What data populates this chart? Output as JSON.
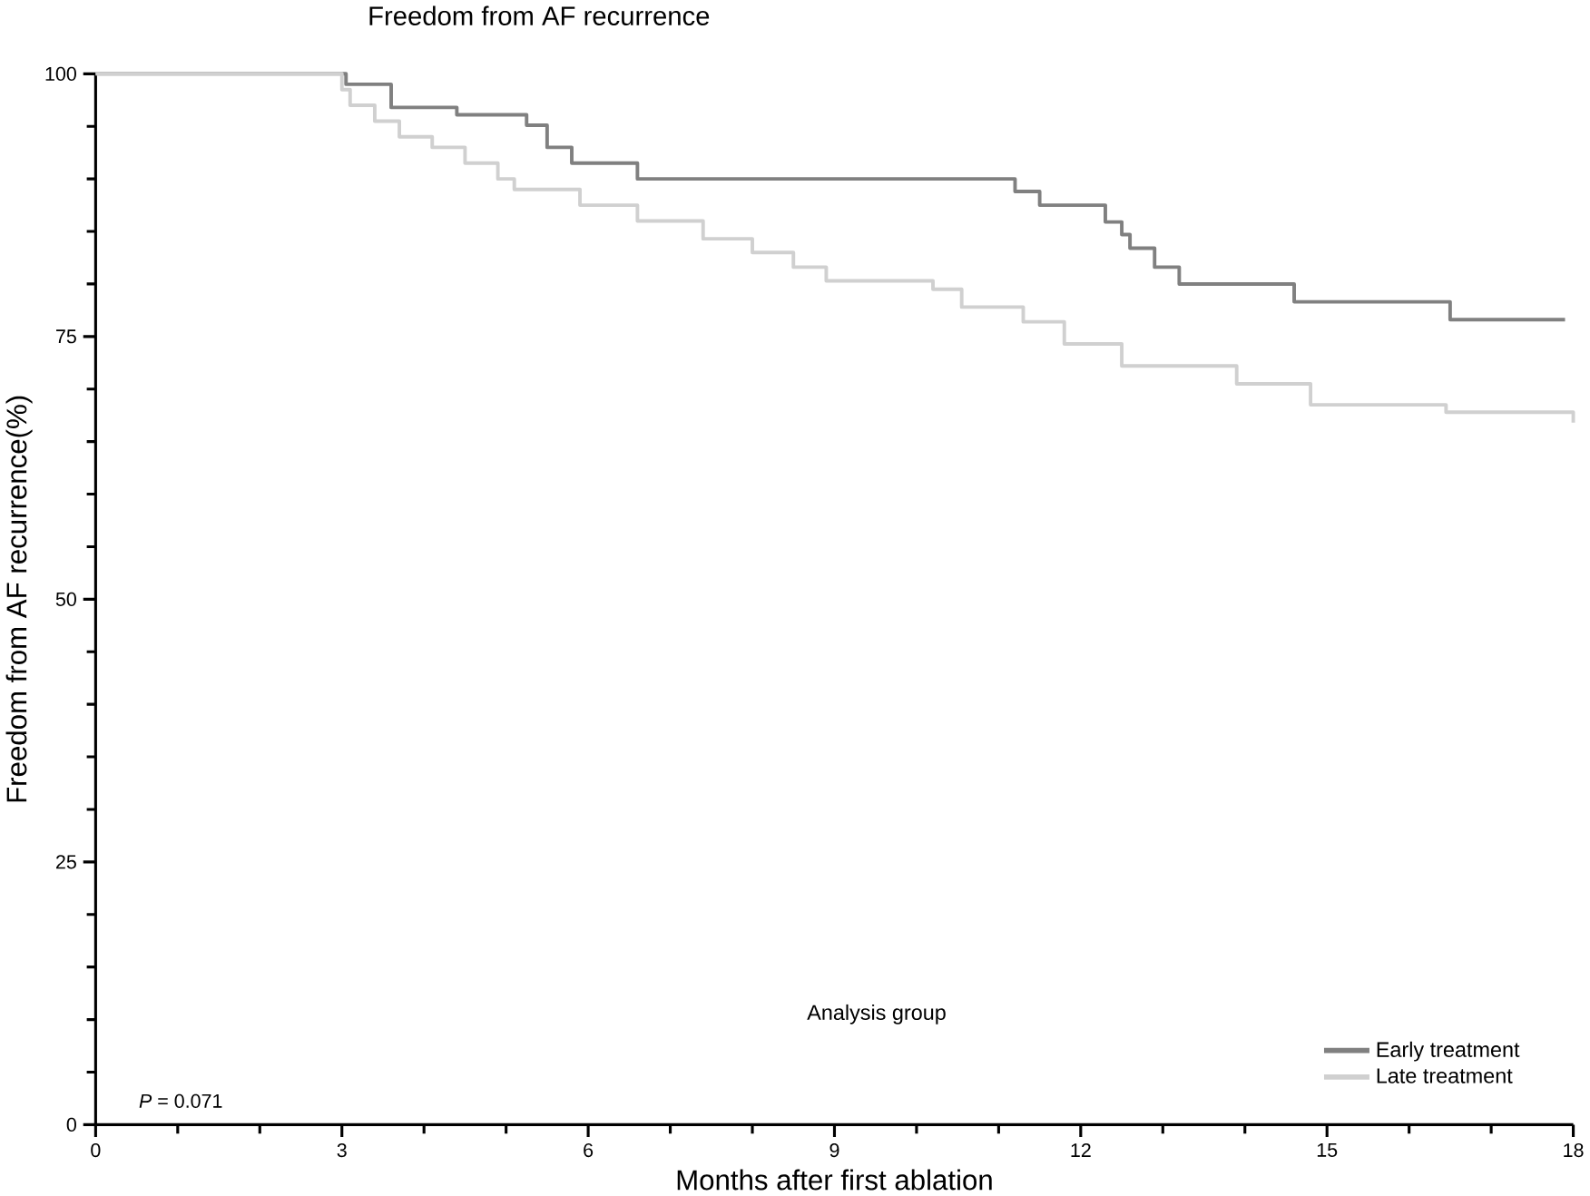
{
  "chart_data": {
    "type": "step",
    "title": "Freedom from AF recurrence",
    "xlabel": "Months after first ablation",
    "ylabel": "Freedom from AF recurrence(%)",
    "legend_title": "Analysis group",
    "series": [
      {
        "name": "Early treatment",
        "color": "#808080",
        "x": [
          0,
          3.05,
          3.6,
          4.4,
          5.25,
          5.5,
          5.8,
          6.6,
          11.2,
          11.5,
          12.3,
          12.5,
          12.6,
          12.9,
          13.2,
          14.6,
          16.5,
          17.9
        ],
        "values": [
          100,
          99,
          96.8,
          96.1,
          95.1,
          93,
          91.5,
          90,
          88.8,
          87.5,
          85.9,
          84.7,
          83.4,
          81.6,
          80,
          78.3,
          76.6,
          76.6
        ]
      },
      {
        "name": "Late treatment",
        "color": "#d0d0d0",
        "x": [
          0,
          3,
          3.1,
          3.4,
          3.7,
          4.1,
          4.5,
          4.9,
          5.1,
          5.9,
          6.6,
          7.4,
          8.0,
          8.5,
          8.9,
          10.2,
          10.55,
          11.3,
          11.8,
          12.5,
          13.9,
          14.8,
          16.45,
          17.9,
          18
        ],
        "values": [
          100,
          98.5,
          97,
          95.5,
          94,
          93,
          91.5,
          90,
          89,
          87.5,
          86,
          84.3,
          83,
          81.6,
          80.3,
          79.5,
          77.8,
          76.4,
          74.3,
          72.2,
          70.5,
          68.5,
          67.8,
          67.8,
          66.8
        ]
      }
    ],
    "xlim": [
      0,
      18
    ],
    "ylim": [
      0,
      100
    ],
    "xticks": [
      0,
      3,
      6,
      9,
      12,
      15,
      18
    ],
    "yticks": [
      0,
      25,
      50,
      75,
      100
    ],
    "legend": "bottom right",
    "grid": false,
    "marker": "none",
    "line_style": "solid",
    "annotations": [
      "*P* = 0.071"
    ]
  }
}
